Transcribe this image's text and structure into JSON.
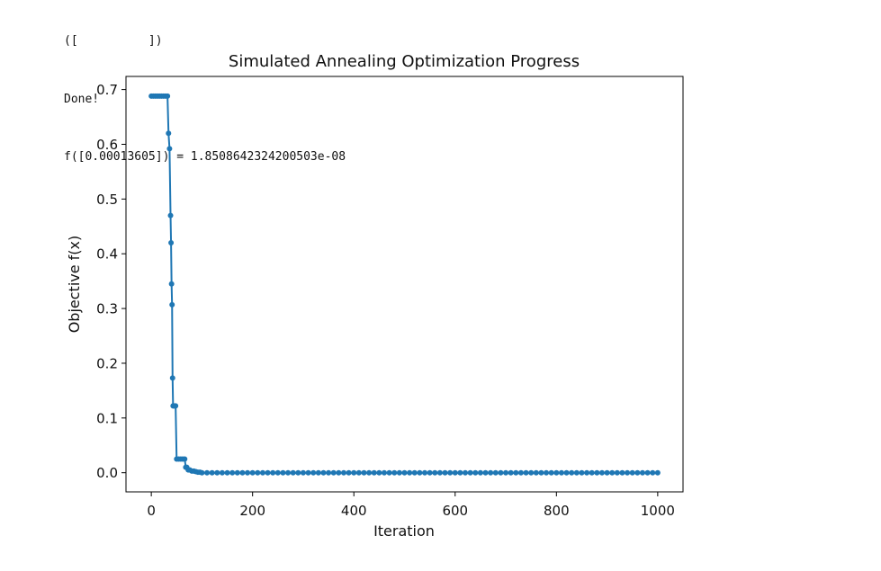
{
  "console": {
    "partial_line": "([          ])",
    "done_line": "Done!",
    "result_line": "f([0.00013605]) = 1.8508642324200503e-08"
  },
  "chart_data": {
    "type": "line",
    "title": "Simulated Annealing Optimization Progress",
    "xlabel": "Iteration",
    "ylabel": "Objective f(x)",
    "xlim": [
      -50,
      1050
    ],
    "ylim": [
      -0.035,
      0.724
    ],
    "xticks": [
      0,
      200,
      400,
      600,
      800,
      1000
    ],
    "yticks": [
      0.0,
      0.1,
      0.2,
      0.3,
      0.4,
      0.5,
      0.6,
      0.7
    ],
    "xtick_labels": [
      "0",
      "200",
      "400",
      "600",
      "800",
      "1000"
    ],
    "ytick_labels": [
      "0.0",
      "0.1",
      "0.2",
      "0.3",
      "0.4",
      "0.5",
      "0.6",
      "0.7"
    ],
    "grid": false,
    "legend": "none",
    "series": [
      {
        "color": "#1f77b4",
        "marker": "circle",
        "x": [
          0,
          4,
          8,
          12,
          16,
          20,
          24,
          28,
          32,
          34,
          36,
          38,
          39,
          40,
          41,
          42,
          43,
          44,
          46,
          48,
          50,
          54,
          58,
          62,
          66,
          68,
          70,
          73,
          76,
          80,
          84,
          88,
          92,
          96,
          100,
          1000
        ],
        "y": [
          0.688,
          0.688,
          0.688,
          0.688,
          0.688,
          0.688,
          0.688,
          0.688,
          0.688,
          0.62,
          0.592,
          0.47,
          0.42,
          0.345,
          0.307,
          0.173,
          0.122,
          0.122,
          0.122,
          0.122,
          0.025,
          0.025,
          0.025,
          0.025,
          0.025,
          0.01,
          0.01,
          0.005,
          0.005,
          0.003,
          0.003,
          0.002,
          0.001,
          0.001,
          0.0,
          0.0
        ],
        "uniform_markers_from": 100,
        "uniform_marker_step": 10
      }
    ]
  }
}
